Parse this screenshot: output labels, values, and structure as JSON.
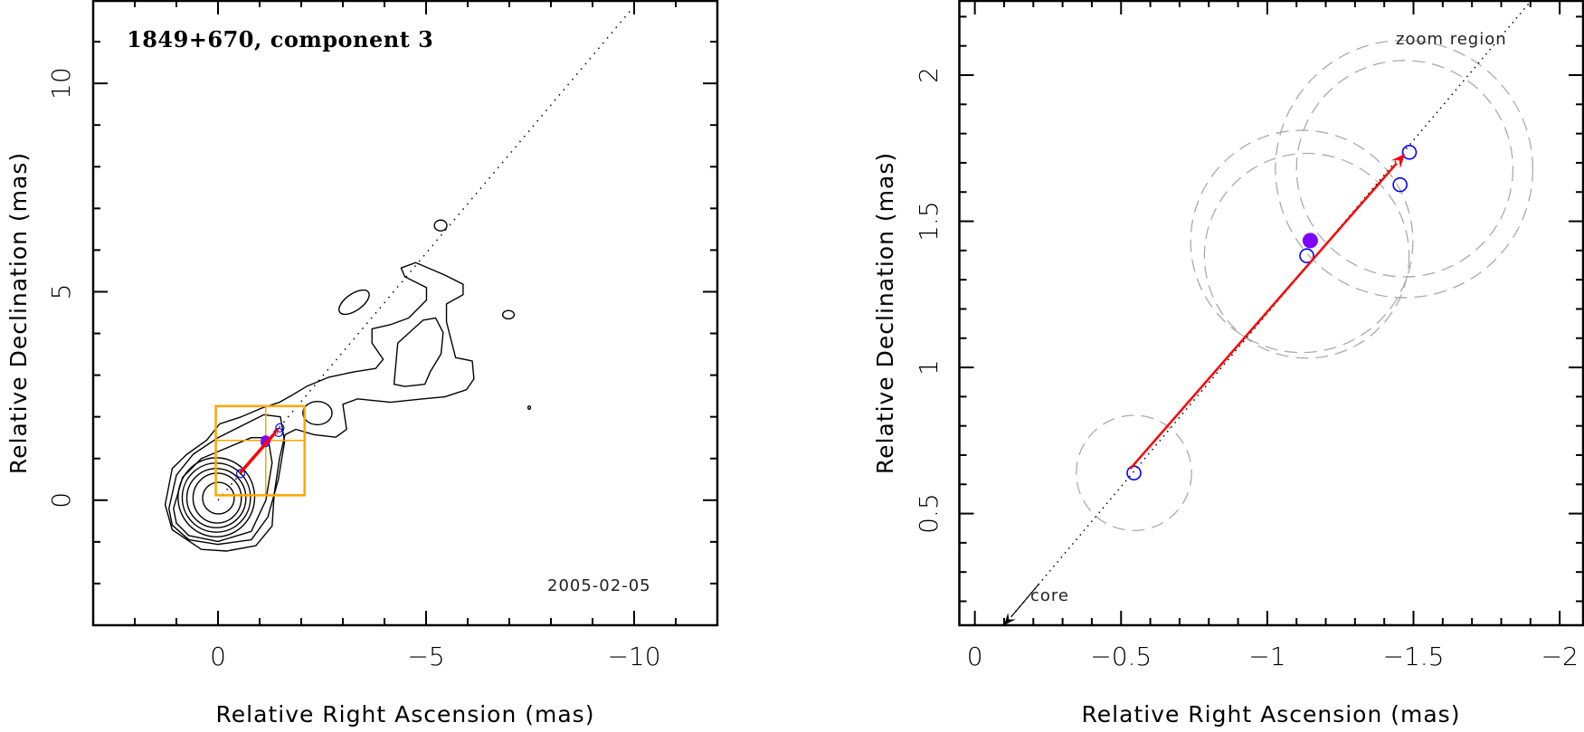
{
  "chart_data": [
    {
      "type": "contour",
      "title": "1849+670, component 3",
      "date_label": "2005-02-05",
      "xlabel": "Relative Right Ascension (mas)",
      "ylabel": "Relative Declination (mas)",
      "xlim": [
        3,
        -12
      ],
      "ylim": [
        -3,
        12
      ],
      "xticks": {
        "major": [
          0,
          -5,
          -10
        ],
        "labels": [
          "0",
          "−5",
          "−10"
        ],
        "minor_step": 1
      },
      "yticks": {
        "major": [
          0,
          5,
          10
        ],
        "labels": [
          "0",
          "5",
          "10"
        ],
        "minor_step": 1
      },
      "jet_axis_slope": -1.185,
      "contours": [
        {
          "level": 1,
          "points": [
            [
              0.4,
              -1.18
            ],
            [
              1.1,
              -0.71
            ],
            [
              1.27,
              -0.11
            ],
            [
              1.1,
              0.76
            ],
            [
              0.75,
              1.1
            ],
            [
              0.27,
              1.44
            ],
            [
              -0.04,
              1.83
            ],
            [
              -0.56,
              2.0
            ],
            [
              -1.08,
              2.22
            ],
            [
              -1.48,
              2.35
            ],
            [
              -1.78,
              2.52
            ],
            [
              -2.13,
              2.73
            ],
            [
              -2.66,
              2.95
            ],
            [
              -3.27,
              3.08
            ],
            [
              -3.79,
              3.16
            ],
            [
              -3.97,
              3.38
            ],
            [
              -3.7,
              3.77
            ],
            [
              -3.7,
              4.11
            ],
            [
              -4.14,
              4.21
            ],
            [
              -4.58,
              4.37
            ],
            [
              -5.01,
              4.8
            ],
            [
              -5.01,
              5.1
            ],
            [
              -4.49,
              5.36
            ],
            [
              -4.4,
              5.57
            ],
            [
              -4.75,
              5.7
            ],
            [
              -5.45,
              5.4
            ],
            [
              -5.89,
              5.18
            ],
            [
              -5.89,
              4.93
            ],
            [
              -5.49,
              4.71
            ],
            [
              -5.49,
              4.28
            ],
            [
              -5.71,
              3.42
            ],
            [
              -6.11,
              3.34
            ],
            [
              -6.15,
              2.91
            ],
            [
              -5.97,
              2.65
            ],
            [
              -5.45,
              2.48
            ],
            [
              -4.93,
              2.43
            ],
            [
              -4.14,
              2.35
            ],
            [
              -3.35,
              2.43
            ],
            [
              -3.0,
              2.3
            ],
            [
              -3.09,
              1.7
            ],
            [
              -2.83,
              1.51
            ],
            [
              -2.31,
              1.57
            ],
            [
              -1.87,
              1.7
            ],
            [
              -1.61,
              1.57
            ],
            [
              -1.48,
              1.01
            ],
            [
              -1.35,
              0.15
            ],
            [
              -1.3,
              -0.62
            ],
            [
              -0.91,
              -1.09
            ],
            [
              -0.21,
              -1.22
            ]
          ]
        },
        {
          "level": 1,
          "points": [
            [
              -4.23,
              2.78
            ],
            [
              -4.32,
              3.77
            ],
            [
              -4.93,
              4.32
            ],
            [
              -5.23,
              4.37
            ],
            [
              -5.41,
              4.02
            ],
            [
              -5.36,
              3.51
            ],
            [
              -5.1,
              3.08
            ],
            [
              -4.97,
              2.78
            ],
            [
              -4.49,
              2.73
            ]
          ]
        },
        {
          "level": 2,
          "points": [
            [
              1.18,
              -0.2
            ],
            [
              1.0,
              0.6
            ],
            [
              0.6,
              1.1
            ],
            [
              0.0,
              1.5
            ],
            [
              -0.6,
              1.8
            ],
            [
              -1.1,
              2.05
            ],
            [
              -1.5,
              2.0
            ],
            [
              -1.6,
              1.4
            ],
            [
              -1.45,
              0.5
            ],
            [
              -1.2,
              -0.4
            ],
            [
              -0.8,
              -0.95
            ],
            [
              0.0,
              -1.06
            ],
            [
              0.7,
              -0.95
            ],
            [
              1.1,
              -0.6
            ]
          ]
        },
        {
          "level": 3,
          "points": [
            [
              1.07,
              -0.2
            ],
            [
              0.85,
              0.55
            ],
            [
              0.4,
              1.0
            ],
            [
              -0.2,
              1.25
            ],
            [
              -0.8,
              1.5
            ],
            [
              -1.2,
              1.5
            ],
            [
              -1.3,
              0.9
            ],
            [
              -1.15,
              0.0
            ],
            [
              -0.8,
              -0.75
            ],
            [
              0.0,
              -0.99
            ],
            [
              0.7,
              -0.85
            ],
            [
              1.0,
              -0.55
            ]
          ]
        }
      ],
      "contour_ellipses": [
        {
          "level": 4,
          "cx": 0.04,
          "cy": 0.07,
          "rx": 0.92,
          "ry": 0.95
        },
        {
          "level": 5,
          "cx": 0.04,
          "cy": 0.06,
          "rx": 0.82,
          "ry": 0.83
        },
        {
          "level": 6,
          "cx": 0.04,
          "cy": 0.05,
          "rx": 0.71,
          "ry": 0.71
        },
        {
          "level": 7,
          "cx": 0.02,
          "cy": 0.05,
          "rx": 0.58,
          "ry": 0.6
        },
        {
          "level": 8,
          "cx": -0.01,
          "cy": 0.05,
          "rx": 0.38,
          "ry": 0.38
        },
        {
          "level": 1,
          "cx": -3.27,
          "cy": 4.75,
          "rx": 0.42,
          "ry": 0.2,
          "angle": 35
        },
        {
          "level": 1,
          "cx": -5.35,
          "cy": 6.59,
          "rx": 0.15,
          "ry": 0.13
        },
        {
          "level": 1,
          "cx": -6.98,
          "cy": 4.45,
          "rx": 0.14,
          "ry": 0.1
        },
        {
          "level": 1,
          "cx": -2.39,
          "cy": 2.09,
          "rx": 0.35,
          "ry": 0.28
        },
        {
          "level": 1,
          "cx": -7.48,
          "cy": 2.22,
          "rx": 0.03,
          "ry": 0.04
        }
      ],
      "components": [
        {
          "x": -0.544,
          "y": 0.639,
          "style": "open"
        },
        {
          "x": -1.135,
          "y": 1.382,
          "style": "open"
        },
        {
          "x": -1.454,
          "y": 1.625,
          "style": "open"
        },
        {
          "x": -1.486,
          "y": 1.736,
          "style": "open"
        },
        {
          "x": -1.147,
          "y": 1.434,
          "style": "filled"
        }
      ],
      "motion_arrow": {
        "from": [
          -0.531,
          0.653
        ],
        "to": [
          -1.471,
          1.731
        ]
      },
      "zoom_box": {
        "xlim": [
          0.053,
          -2.08
        ],
        "ylim": [
          0.118,
          2.257
        ],
        "crosshair": [
          -1.147,
          1.434
        ]
      },
      "colors": {
        "contour": "#000000",
        "component": "#0000ff",
        "mean": "#7f00ff",
        "arrow": "#ff0000",
        "zoom_box": "#ffa500"
      }
    },
    {
      "type": "scatter",
      "annotation": "zoom region",
      "core_label": "core",
      "xlabel": "Relative Right Ascension (mas)",
      "ylabel": "Relative Declination (mas)",
      "xlim": [
        0.053,
        -2.08
      ],
      "ylim": [
        0.118,
        2.257
      ],
      "xticks": {
        "major": [
          0,
          -0.5,
          -1,
          -1.5,
          -2
        ],
        "labels": [
          "0",
          "−0.5",
          "−1",
          "−1.5",
          "−2"
        ],
        "minor_step": 0.1
      },
      "yticks": {
        "major": [
          0.5,
          1,
          1.5,
          2
        ],
        "labels": [
          "0.5",
          "1",
          "1.5",
          "2"
        ],
        "minor_step": 0.1
      },
      "jet_axis_slope": -1.185,
      "core_arrow_tip": [
        -0.1,
        0.118
      ],
      "components": [
        {
          "x": -0.544,
          "y": 0.639,
          "style": "open"
        },
        {
          "x": -1.135,
          "y": 1.382,
          "style": "open"
        },
        {
          "x": -1.454,
          "y": 1.625,
          "style": "open"
        },
        {
          "x": -1.486,
          "y": 1.736,
          "style": "open"
        },
        {
          "x": -1.147,
          "y": 1.434,
          "style": "filled"
        }
      ],
      "error_circles": [
        {
          "x": -0.544,
          "y": 0.639,
          "r": 0.197
        },
        {
          "x": -1.118,
          "y": 1.431,
          "r": 0.38
        },
        {
          "x": -1.135,
          "y": 1.382,
          "r": 0.35
        },
        {
          "x": -1.468,
          "y": 1.679,
          "r": 0.44
        },
        {
          "x": -1.47,
          "y": 1.68,
          "r": 0.37
        }
      ],
      "motion_arrow": {
        "from": [
          -0.531,
          0.653
        ],
        "to": [
          -1.471,
          1.731
        ]
      },
      "colors": {
        "component": "#0000ff",
        "mean": "#7f00ff",
        "arrow": "#ff0000",
        "error_circle": "#aaaaaa"
      }
    }
  ]
}
